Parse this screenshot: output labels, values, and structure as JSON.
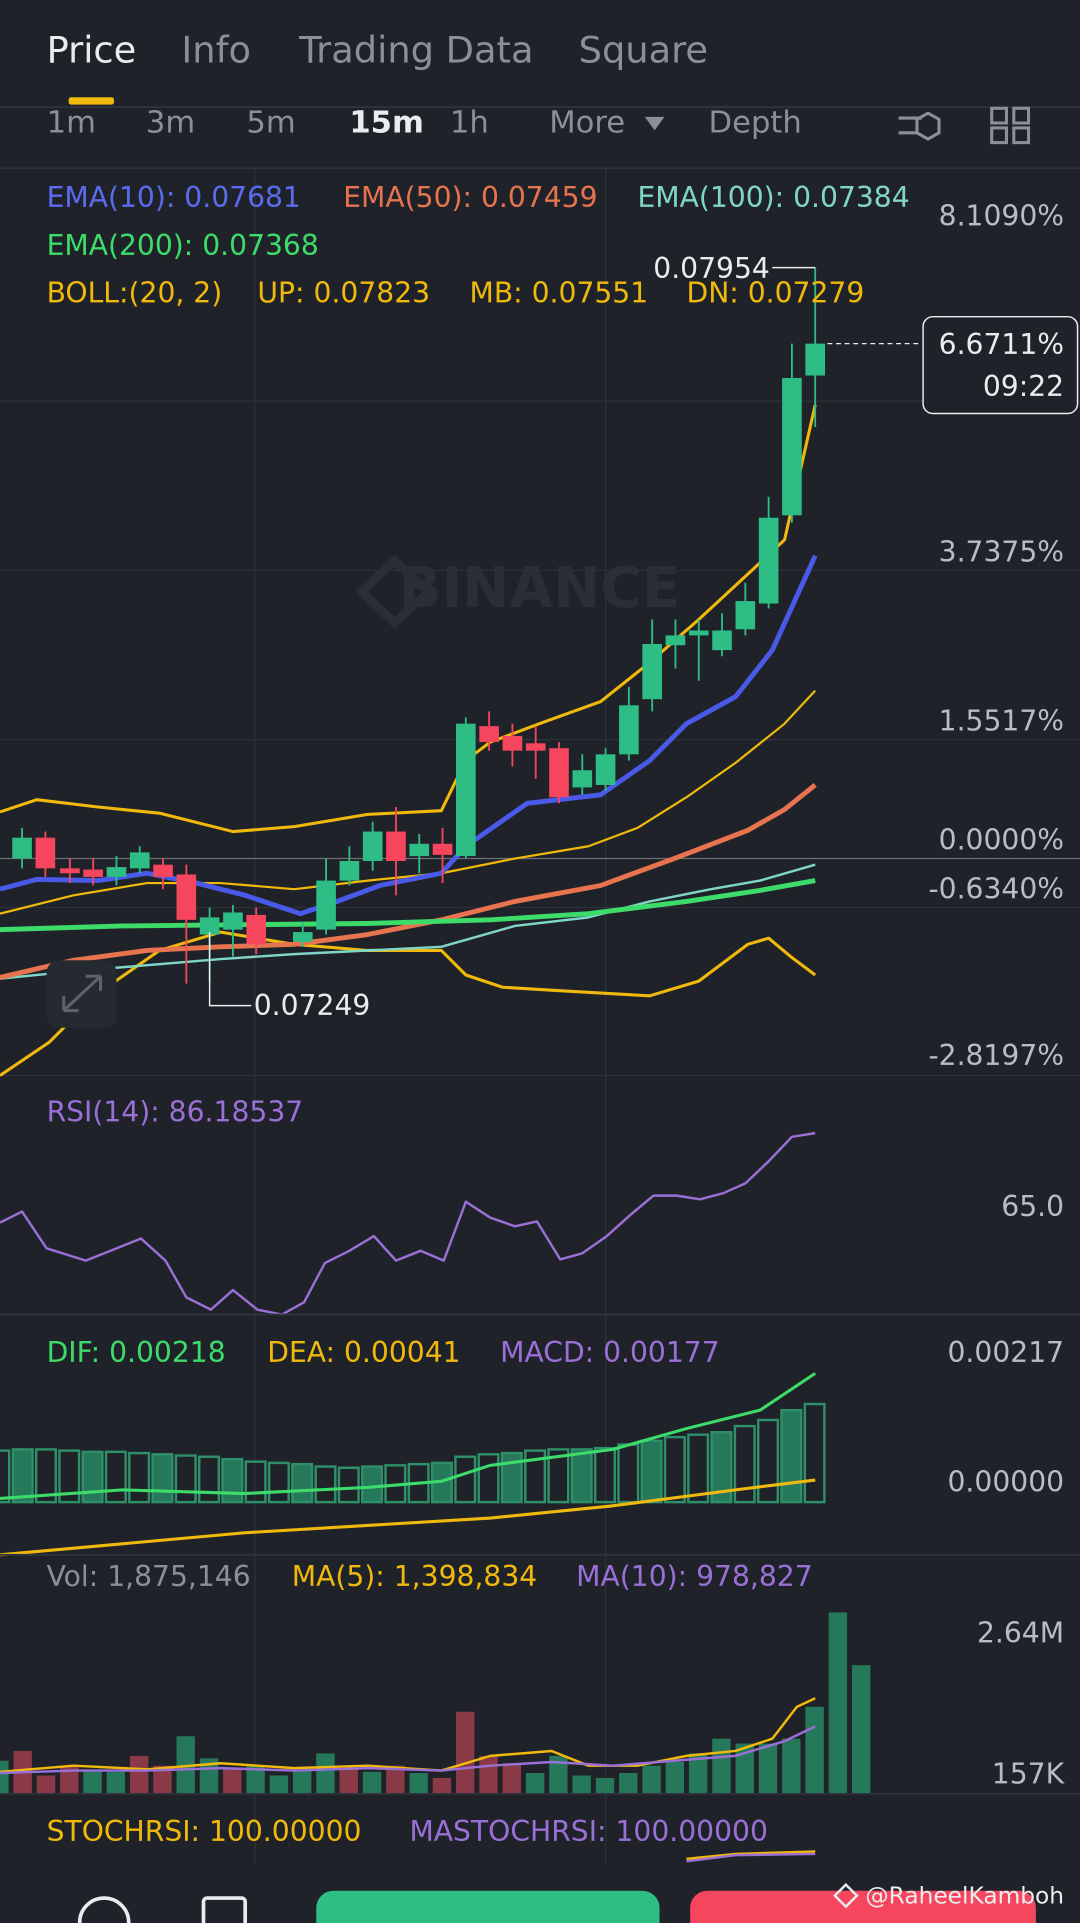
{
  "tabs": [
    "Price",
    "Info",
    "Trading Data",
    "Square"
  ],
  "intervals": [
    "1m",
    "3m",
    "5m",
    "15m",
    "1h",
    "More",
    "Depth"
  ],
  "ema": [
    "EMA(10): 0.07681",
    "EMA(50): 0.07459",
    "EMA(100): 0.07384",
    "EMA(200): 0.07368"
  ],
  "boll": [
    "BOLL:(20, 2)",
    "UP: 0.07823",
    "MB: 0.07551",
    "DN: 0.07279"
  ],
  "price_axis": [
    "8.1090%",
    "3.7375%",
    "1.5517%",
    "0.0000%",
    "-0.6340%",
    "-2.8197%"
  ],
  "current": {
    "change": "6.6711%",
    "countdown": "09:22"
  },
  "high_label": "0.07954",
  "low_label": "0.07249",
  "watermark": "BINANCE",
  "rsi": {
    "label": "RSI(14): 86.18537",
    "axis": "65.0"
  },
  "macd": {
    "labels": [
      "DIF: 0.00218",
      "DEA: 0.00041",
      "MACD: 0.00177"
    ],
    "axis": [
      "0.00217",
      "0.00000"
    ]
  },
  "volume": {
    "labels": [
      "Vol: 1,875,146",
      "MA(5): 1,398,834",
      "MA(10): 978,827"
    ],
    "axis": [
      "2.64M",
      "157K"
    ]
  },
  "stochrsi": [
    "STOCHRSI: 100.00000",
    "MASTOCHRSI: 100.00000"
  ],
  "credit": "@RaheelKamboh"
}
